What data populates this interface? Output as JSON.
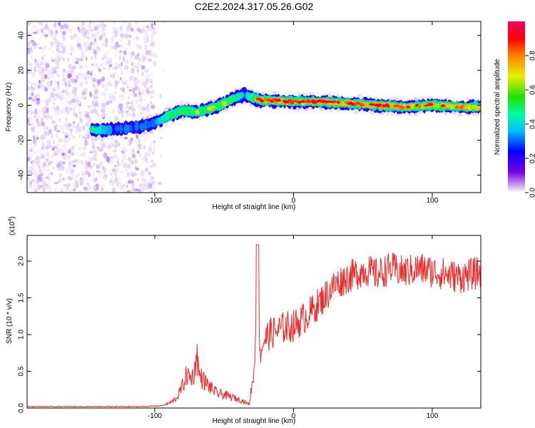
{
  "figure_title": "C2E2.2024.317.05.26.G02",
  "chart_data": [
    {
      "type": "heatmap",
      "title": "",
      "xlabel": "Height of straight line (km)",
      "ylabel": "Frequency (Hz)",
      "xlim": [
        -192,
        135
      ],
      "ylim": [
        -50,
        48
      ],
      "xticks": [
        -100,
        0,
        100
      ],
      "xtick_labels": [
        "-100",
        "0",
        "100"
      ],
      "yticks": [
        -40,
        -20,
        0,
        20,
        40
      ],
      "ytick_labels": [
        "-40",
        "-20",
        "0",
        "20",
        "40"
      ],
      "colorbar": {
        "label": "Normalized spectral amplitude",
        "range": [
          0,
          1
        ],
        "ticks": [
          0.0,
          0.2,
          0.4,
          0.6,
          0.8
        ],
        "tick_labels": [
          "0.0",
          "0.2",
          "0.4",
          "0.6",
          "0.8"
        ],
        "colormap": [
          "#ffffff",
          "#c9a8f0",
          "#7b00e0",
          "#0000ff",
          "#00c0ff",
          "#00ffa0",
          "#20e000",
          "#e8f000",
          "#ff8000",
          "#ff0000",
          "#f0006a"
        ]
      },
      "ridge": [
        {
          "x": -145,
          "y": -14,
          "amp": 0.45
        },
        {
          "x": -130,
          "y": -14,
          "amp": 0.3
        },
        {
          "x": -110,
          "y": -12,
          "amp": 0.32
        },
        {
          "x": -100,
          "y": -10,
          "amp": 0.35
        },
        {
          "x": -90,
          "y": -6,
          "amp": 0.5
        },
        {
          "x": -80,
          "y": -3,
          "amp": 0.55
        },
        {
          "x": -70,
          "y": -4,
          "amp": 0.6
        },
        {
          "x": -60,
          "y": -2,
          "amp": 0.6
        },
        {
          "x": -50,
          "y": 1,
          "amp": 0.6
        },
        {
          "x": -40,
          "y": 5,
          "amp": 0.5
        },
        {
          "x": -35,
          "y": 6,
          "amp": 0.3
        },
        {
          "x": -25,
          "y": 3,
          "amp": 0.75
        },
        {
          "x": 0,
          "y": 2,
          "amp": 0.85
        },
        {
          "x": 20,
          "y": 2,
          "amp": 0.95
        },
        {
          "x": 40,
          "y": 1,
          "amp": 0.8
        },
        {
          "x": 60,
          "y": 0,
          "amp": 0.85
        },
        {
          "x": 80,
          "y": -1,
          "amp": 0.75
        },
        {
          "x": 100,
          "y": 0,
          "amp": 0.8
        },
        {
          "x": 120,
          "y": -1,
          "amp": 0.7
        },
        {
          "x": 135,
          "y": -1,
          "amp": 0.65
        }
      ],
      "noise_region_x": [
        -192,
        -100
      ]
    },
    {
      "type": "line",
      "title": "",
      "xlabel": "Height of straight line (km)",
      "ylabel": "SNR (10 * v/v)",
      "y_multiplier": "(x10",
      "y_multiplier_exponent": "4",
      "y_multiplier_close": ")",
      "xlim": [
        -192,
        135
      ],
      "ylim": [
        0,
        2.35
      ],
      "xticks": [
        -100,
        0,
        100
      ],
      "xtick_labels": [
        "-100",
        "0",
        "100"
      ],
      "yticks": [
        0.0,
        0.5,
        1.0,
        1.5,
        2.0
      ],
      "ytick_labels": [
        "0.0",
        "0.5",
        "1.0",
        "1.5",
        "2.0"
      ],
      "line_color": "#ee2a2a",
      "series": [
        {
          "x": [
            -192,
            -160,
            -130,
            -110,
            -95,
            -88,
            -84,
            -80,
            -77,
            -74,
            -71,
            -70,
            -68,
            -65,
            -60,
            -55,
            -50,
            -45,
            -40,
            -37,
            -32,
            -28,
            -26,
            -24,
            -22,
            -18,
            -12,
            -6,
            0,
            6,
            12,
            18,
            24,
            30,
            36,
            44,
            52,
            60,
            70,
            80,
            90,
            100,
            110,
            120,
            128,
            135
          ],
          "y": [
            0.02,
            0.02,
            0.02,
            0.02,
            0.03,
            0.08,
            0.14,
            0.3,
            0.45,
            0.4,
            0.5,
            0.82,
            0.45,
            0.38,
            0.28,
            0.2,
            0.18,
            0.15,
            0.12,
            0.1,
            0.05,
            0.55,
            2.22,
            0.7,
            0.9,
            1.0,
            1.05,
            1.1,
            1.12,
            1.2,
            1.3,
            1.42,
            1.55,
            1.68,
            1.75,
            1.82,
            1.88,
            1.82,
            1.9,
            1.85,
            1.9,
            1.86,
            1.82,
            1.78,
            1.82,
            1.85
          ]
        }
      ]
    }
  ]
}
